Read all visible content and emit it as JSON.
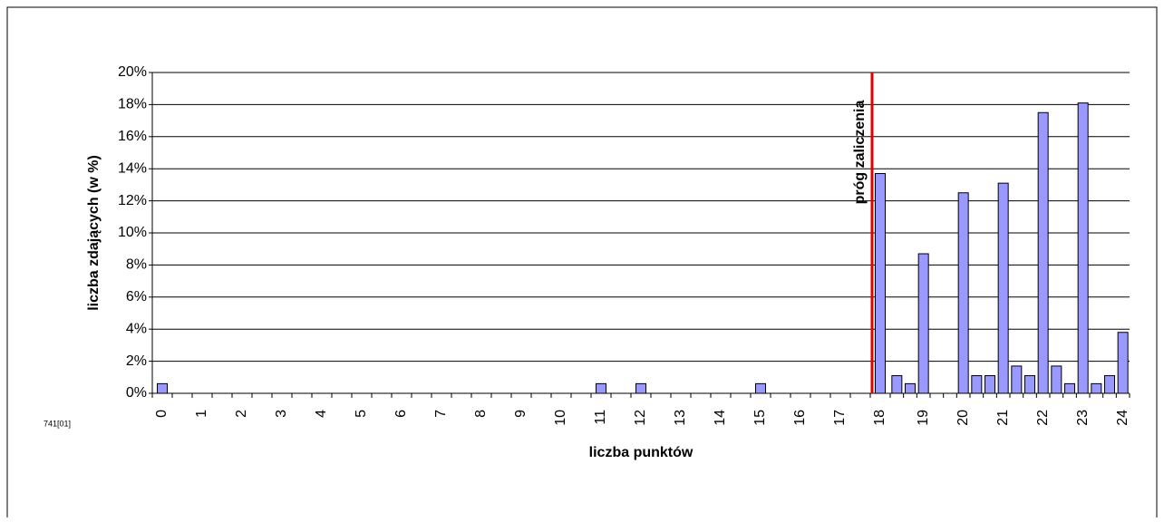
{
  "chart_data": {
    "type": "bar",
    "x_label": "liczba punktów",
    "y_label": "liczba zdających (w %)",
    "note": "741[01]",
    "categories": [
      "0",
      null,
      "1",
      null,
      "2",
      null,
      "3",
      null,
      "4",
      null,
      "5",
      null,
      "6",
      null,
      "7",
      null,
      "8",
      null,
      "9",
      null,
      "10",
      null,
      "11",
      null,
      "12",
      null,
      "13",
      null,
      "14",
      null,
      "15",
      null,
      "16",
      null,
      "17",
      null,
      "18",
      null,
      null,
      "19",
      null,
      null,
      "20",
      null,
      null,
      "21",
      null,
      null,
      "22",
      null,
      null,
      "23",
      null,
      null,
      "24"
    ],
    "values": [
      0.6,
      0,
      0,
      0,
      0,
      0,
      0,
      0,
      0,
      0,
      0,
      0,
      0,
      0,
      0,
      0,
      0,
      0,
      0,
      0,
      0,
      0,
      0.6,
      0,
      0.6,
      0,
      0,
      0,
      0,
      0,
      0.6,
      0,
      0,
      0,
      0,
      0,
      13.7,
      1.1,
      0.6,
      8.7,
      0,
      0,
      12.5,
      1.1,
      1.1,
      13.1,
      1.7,
      1.1,
      17.5,
      1.7,
      0.6,
      18.1,
      0.6,
      1.1,
      3.8
    ],
    "color": "#9999ff",
    "ylim": [
      0,
      20
    ],
    "yticks": [
      {
        "value": 0,
        "label": "0%"
      },
      {
        "value": 2,
        "label": "2%"
      },
      {
        "value": 4,
        "label": "4%"
      },
      {
        "value": 6,
        "label": "6%"
      },
      {
        "value": 8,
        "label": "8%"
      },
      {
        "value": 10,
        "label": "10%"
      },
      {
        "value": 12,
        "label": "12%"
      },
      {
        "value": 14,
        "label": "14%"
      },
      {
        "value": 16,
        "label": "16%"
      },
      {
        "value": 18,
        "label": "18%"
      },
      {
        "value": 20,
        "label": "20%"
      }
    ],
    "grid": true,
    "threshold": {
      "x": "18",
      "label": "próg zaliczenia",
      "color": "#e00000"
    }
  }
}
